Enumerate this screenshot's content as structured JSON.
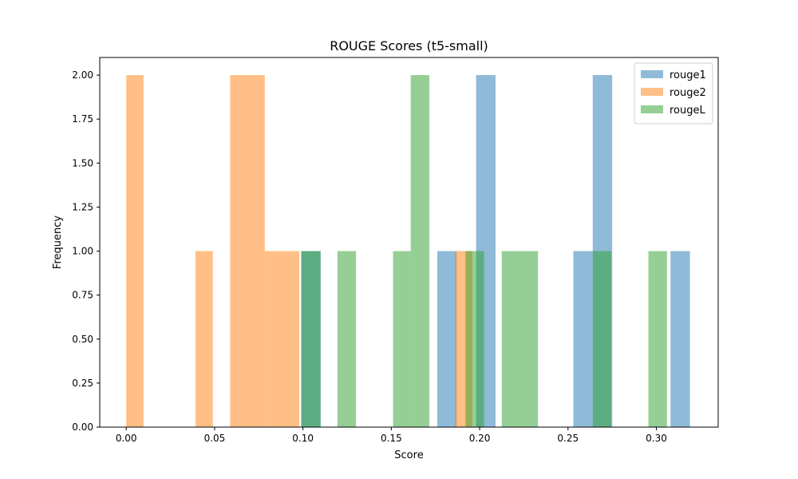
{
  "chart_data": {
    "type": "bar",
    "title": "ROUGE Scores (t5-small)",
    "xlabel": "Score",
    "ylabel": "Frequency",
    "xlim": [
      -0.015,
      0.335
    ],
    "ylim": [
      0,
      2.1
    ],
    "grid": false,
    "legend_position": "top-right",
    "x_ticks": [
      0.0,
      0.05,
      0.1,
      0.15,
      0.2,
      0.25,
      0.3
    ],
    "x_tick_labels": [
      "0.00",
      "0.05",
      "0.10",
      "0.15",
      "0.20",
      "0.25",
      "0.30"
    ],
    "y_ticks": [
      0.0,
      0.25,
      0.5,
      0.75,
      1.0,
      1.25,
      1.5,
      1.75,
      2.0
    ],
    "y_tick_labels": [
      "0.00",
      "0.25",
      "0.50",
      "0.75",
      "1.00",
      "1.25",
      "1.50",
      "1.75",
      "2.00"
    ],
    "series": [
      {
        "name": "rouge1",
        "color": "#1f77b4",
        "opacity": 0.5,
        "bins": [
          {
            "x0": 0.099,
            "x1": 0.11,
            "count": 1
          },
          {
            "x0": 0.176,
            "x1": 0.187,
            "count": 1
          },
          {
            "x0": 0.198,
            "x1": 0.209,
            "count": 2
          },
          {
            "x0": 0.253,
            "x1": 0.264,
            "count": 1
          },
          {
            "x0": 0.264,
            "x1": 0.275,
            "count": 2
          },
          {
            "x0": 0.308,
            "x1": 0.319,
            "count": 1
          }
        ]
      },
      {
        "name": "rouge2",
        "color": "#ff7f0e",
        "opacity": 0.5,
        "bins": [
          {
            "x0": 0.0,
            "x1": 0.0098,
            "count": 2
          },
          {
            "x0": 0.0392,
            "x1": 0.049,
            "count": 1
          },
          {
            "x0": 0.0588,
            "x1": 0.0784,
            "count": 2
          },
          {
            "x0": 0.0784,
            "x1": 0.098,
            "count": 1
          },
          {
            "x0": 0.186,
            "x1": 0.1958,
            "count": 1
          }
        ]
      },
      {
        "name": "rougeL",
        "color": "#2ca02c",
        "opacity": 0.5,
        "bins": [
          {
            "x0": 0.099,
            "x1": 0.11,
            "count": 1
          },
          {
            "x0": 0.1195,
            "x1": 0.13,
            "count": 1
          },
          {
            "x0": 0.151,
            "x1": 0.161,
            "count": 1
          },
          {
            "x0": 0.161,
            "x1": 0.1715,
            "count": 2
          },
          {
            "x0": 0.192,
            "x1": 0.2025,
            "count": 1
          },
          {
            "x0": 0.2125,
            "x1": 0.233,
            "count": 1
          },
          {
            "x0": 0.264,
            "x1": 0.2745,
            "count": 1
          },
          {
            "x0": 0.2955,
            "x1": 0.306,
            "count": 1
          }
        ]
      }
    ]
  }
}
